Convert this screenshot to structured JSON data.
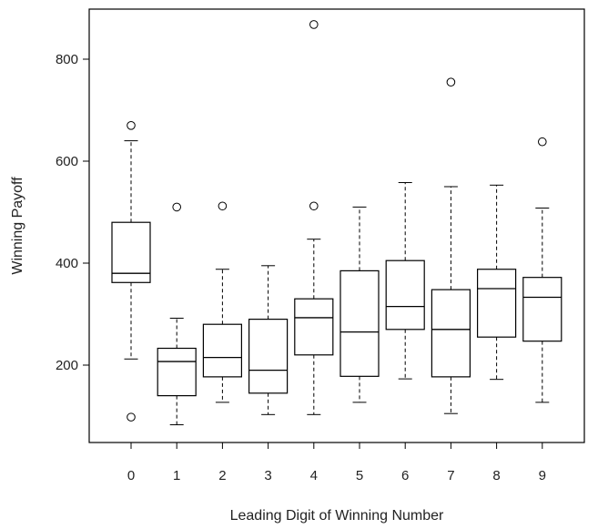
{
  "chart_data": {
    "type": "boxplot",
    "xlabel": "Leading Digit of Winning Number",
    "ylabel": "Winning Payoff",
    "ylim": [
      65,
      895
    ],
    "y_ticks": [
      200,
      400,
      600,
      800
    ],
    "grid": false,
    "legend": "none",
    "categories": [
      "0",
      "1",
      "2",
      "3",
      "4",
      "5",
      "6",
      "7",
      "8",
      "9"
    ],
    "boxes": [
      {
        "category": "0",
        "whisker_low": 212,
        "q1": 362,
        "median": 380,
        "q3": 480,
        "whisker_high": 640,
        "outliers": [
          670,
          98
        ]
      },
      {
        "category": "1",
        "whisker_low": 83,
        "q1": 140,
        "median": 207,
        "q3": 233,
        "whisker_high": 292,
        "outliers": [
          510
        ]
      },
      {
        "category": "2",
        "whisker_low": 127,
        "q1": 177,
        "median": 215,
        "q3": 280,
        "whisker_high": 388,
        "outliers": [
          512
        ]
      },
      {
        "category": "3",
        "whisker_low": 103,
        "q1": 145,
        "median": 190,
        "q3": 290,
        "whisker_high": 395,
        "outliers": []
      },
      {
        "category": "4",
        "whisker_low": 103,
        "q1": 220,
        "median": 293,
        "q3": 330,
        "whisker_high": 447,
        "outliers": [
          512,
          868
        ]
      },
      {
        "category": "5",
        "whisker_low": 127,
        "q1": 178,
        "median": 265,
        "q3": 385,
        "whisker_high": 510,
        "outliers": []
      },
      {
        "category": "6",
        "whisker_low": 173,
        "q1": 270,
        "median": 315,
        "q3": 405,
        "whisker_high": 558,
        "outliers": []
      },
      {
        "category": "7",
        "whisker_low": 105,
        "q1": 177,
        "median": 270,
        "q3": 348,
        "whisker_high": 550,
        "outliers": [
          755
        ]
      },
      {
        "category": "8",
        "whisker_low": 172,
        "q1": 255,
        "median": 350,
        "q3": 388,
        "whisker_high": 553,
        "outliers": []
      },
      {
        "category": "9",
        "whisker_low": 127,
        "q1": 247,
        "median": 333,
        "q3": 372,
        "whisker_high": 508,
        "outliers": [
          638
        ]
      }
    ]
  }
}
